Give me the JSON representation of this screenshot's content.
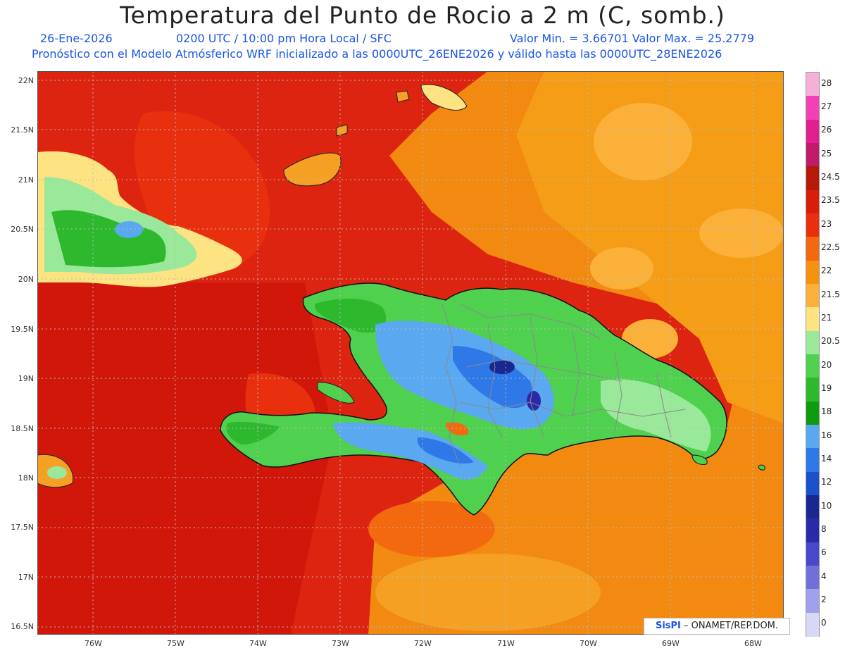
{
  "header": {
    "title": "Temperatura del Punto de Rocio a 2 m (C, somb.)",
    "date": "26-Ene-2026",
    "time": "0200 UTC / 10:00 pm Hora Local / SFC",
    "minmax": "Valor Min. = 3.66701  Valor Max. = 25.2779",
    "model": "Pronóstico con el Modelo Atmósferico WRF inicializado a las 0000UTC_26ENE2026 y válido hasta las  0000UTC_28ENE2026"
  },
  "axes": {
    "y_ticks": [
      "22N",
      "21.5N",
      "21N",
      "20.5N",
      "20N",
      "19.5N",
      "19N",
      "18.5N",
      "18N",
      "17.5N",
      "17N",
      "16.5N"
    ],
    "x_ticks": [
      "76W",
      "75W",
      "74W",
      "73W",
      "72W",
      "71W",
      "70W",
      "69W",
      "68W"
    ]
  },
  "credit": {
    "logo": "SisPI",
    "text": " – ONAMET/REP.DOM."
  },
  "legend": {
    "labels": [
      "28",
      "27",
      "26",
      "25",
      "24.5",
      "23.5",
      "23",
      "22.5",
      "22",
      "21.5",
      "21",
      "20.5",
      "20",
      "19",
      "18",
      "16",
      "14",
      "12",
      "10",
      "8",
      "6",
      "4",
      "2",
      "0"
    ],
    "colors": [
      "#f5b0d8",
      "#f23fb6",
      "#e0208e",
      "#c01a6a",
      "#b41808",
      "#d61e0a",
      "#e8300f",
      "#f26910",
      "#f5920f",
      "#fbb039",
      "#fde382",
      "#9ae89a",
      "#4fd04f",
      "#2db82d",
      "#109a10",
      "#5aa8f0",
      "#2f78e8",
      "#1a50c8",
      "#182890",
      "#2a2aa8",
      "#4848c8",
      "#7070d8",
      "#a0a0ec",
      "#d8d8f6"
    ]
  },
  "colors": {
    "sea_red": "#d91a0a",
    "sea_orange": "#f5920f",
    "land_green": "#4fd04f",
    "land_blue": "#5aa8f0"
  }
}
